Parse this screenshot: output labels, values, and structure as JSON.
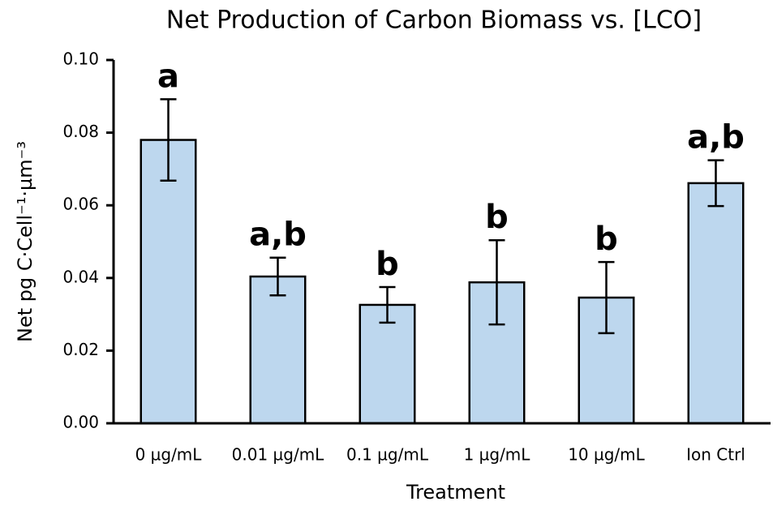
{
  "chart_data": {
    "type": "bar",
    "title": "Net Production of Carbon Biomass vs. [LCO]",
    "x_label": "Treatment",
    "y_label": "Net pg C·Cell⁻¹·µm⁻³",
    "categories": [
      "0 µg/mL",
      "0.01 µg/mL",
      "0.1 µg/mL",
      "1 µg/mL",
      "10 µg/mL",
      "Ion Ctrl"
    ],
    "values": [
      0.078,
      0.0404,
      0.0326,
      0.0388,
      0.0346,
      0.0661
    ],
    "errors": [
      0.0112,
      0.0052,
      0.0049,
      0.0116,
      0.0098,
      0.0063
    ],
    "annotations": [
      "a",
      "a,b",
      "b",
      "b",
      "b",
      "a,b"
    ],
    "color": "#bdd7ee",
    "ylim": [
      0,
      0.1
    ],
    "yticks": [
      {
        "value": 0,
        "label": "0.00"
      },
      0.02,
      0.04,
      0.06,
      0.08,
      {
        "value": 0.1,
        "label": "0.10"
      }
    ]
  }
}
